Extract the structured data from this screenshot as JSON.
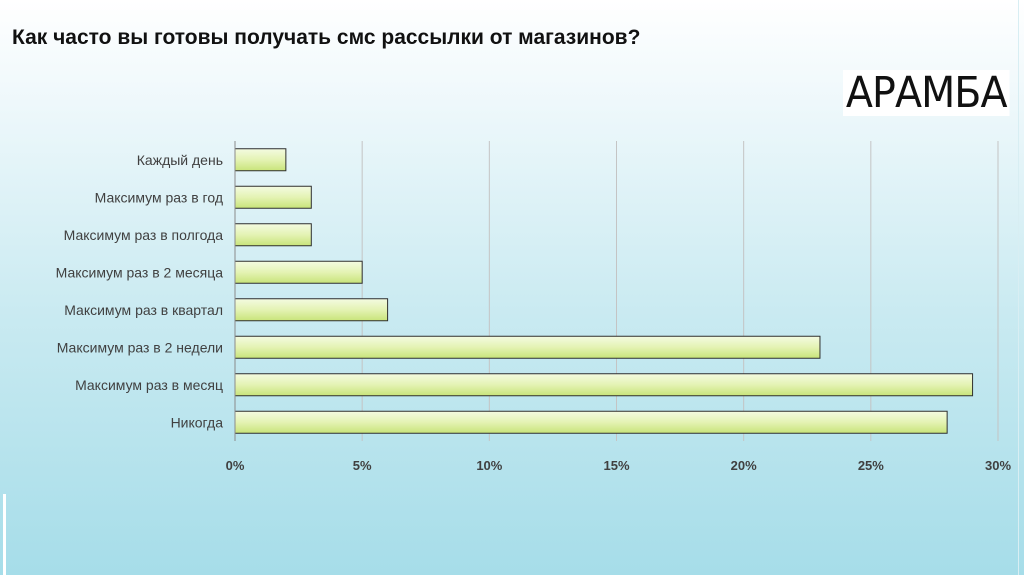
{
  "title": "Как часто вы готовы получать смс рассылки от магазинов?",
  "logo": "АРАМБА",
  "chart_data": {
    "type": "bar",
    "orientation": "horizontal",
    "categories": [
      "Каждый день",
      "Максимум раз в год",
      "Максимум раз в полгода",
      "Максимум раз в 2 месяца",
      "Максимум раз в квартал",
      "Максимум раз в 2 недели",
      "Максимум раз в месяц",
      "Никогда"
    ],
    "values": [
      2,
      3,
      3,
      5,
      6,
      23,
      29,
      28
    ],
    "xlim": [
      0,
      30
    ],
    "xticks": [
      "0%",
      "5%",
      "10%",
      "15%",
      "20%",
      "25%",
      "30%"
    ],
    "grid": true,
    "bar_color": "#dff2a8"
  }
}
